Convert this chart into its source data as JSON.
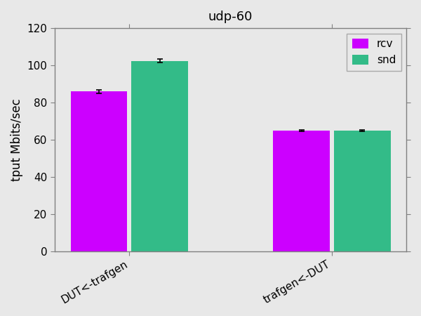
{
  "title": "udp-60",
  "ylabel": "tput Mbits/sec",
  "categories": [
    "DUT<-trafgen",
    "trafgen<-DUT"
  ],
  "rcv_values": [
    86.0,
    65.0
  ],
  "snd_values": [
    102.5,
    65.0
  ],
  "rcv_errors": [
    1.0,
    0.5
  ],
  "snd_errors": [
    1.0,
    0.5
  ],
  "rcv_color": "#cc00ff",
  "snd_color": "#33bb88",
  "ylim": [
    0,
    120
  ],
  "yticks": [
    0,
    20,
    40,
    60,
    80,
    100,
    120
  ],
  "bar_width": 0.28,
  "bar_gap": 0.02,
  "legend_labels": [
    "rcv",
    "snd"
  ],
  "background_color": "#e8e8e8",
  "plot_bg_color": "#e8e8e8",
  "title_fontsize": 13,
  "axis_label_fontsize": 12,
  "tick_label_fontsize": 11,
  "xtick_rotation": 30
}
